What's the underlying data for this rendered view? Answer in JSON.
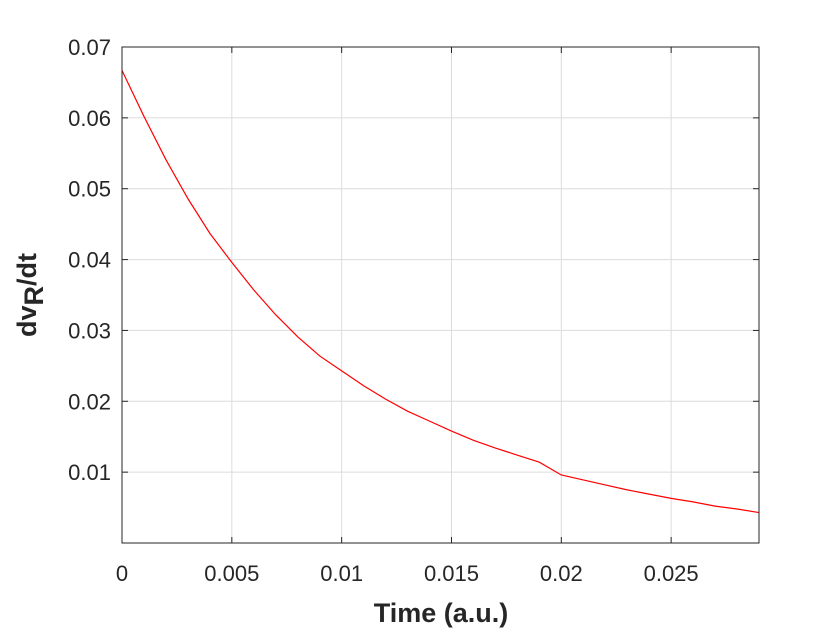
{
  "chart_data": {
    "type": "line",
    "xlabel": "Time (a.u.)",
    "ylabel_main": "dv",
    "ylabel_sub": "R",
    "ylabel_tail": "/dt",
    "xlim": [
      0,
      0.029
    ],
    "ylim": [
      0.0,
      0.07
    ],
    "xticks": [
      0,
      0.005,
      0.01,
      0.015,
      0.02,
      0.025
    ],
    "xtick_labels": [
      "0",
      "0.005",
      "0.01",
      "0.015",
      "0.02",
      "0.025"
    ],
    "yticks": [
      0.01,
      0.02,
      0.03,
      0.04,
      0.05,
      0.06,
      0.07
    ],
    "ytick_labels": [
      "0.01",
      "0.02",
      "0.03",
      "0.04",
      "0.05",
      "0.06",
      "0.07"
    ],
    "grid": true,
    "series": [
      {
        "color": "#ff0000",
        "x": [
          0,
          0.001,
          0.002,
          0.003,
          0.004,
          0.005,
          0.006,
          0.007,
          0.008,
          0.009,
          0.01,
          0.011,
          0.012,
          0.013,
          0.014,
          0.015,
          0.016,
          0.017,
          0.018,
          0.019,
          0.02,
          0.021,
          0.022,
          0.023,
          0.024,
          0.025,
          0.026,
          0.027,
          0.028,
          0.029
        ],
        "y": [
          0.0667,
          0.0602,
          0.0541,
          0.0486,
          0.0437,
          0.0396,
          0.0357,
          0.0322,
          0.0291,
          0.0264,
          0.0243,
          0.0222,
          0.0203,
          0.0186,
          0.0172,
          0.0158,
          0.0145,
          0.0134,
          0.0124,
          0.0114,
          0.0096,
          0.0089,
          0.0082,
          0.0075,
          0.0069,
          0.0063,
          0.0058,
          0.0052,
          0.0048,
          0.0043
        ]
      }
    ]
  }
}
